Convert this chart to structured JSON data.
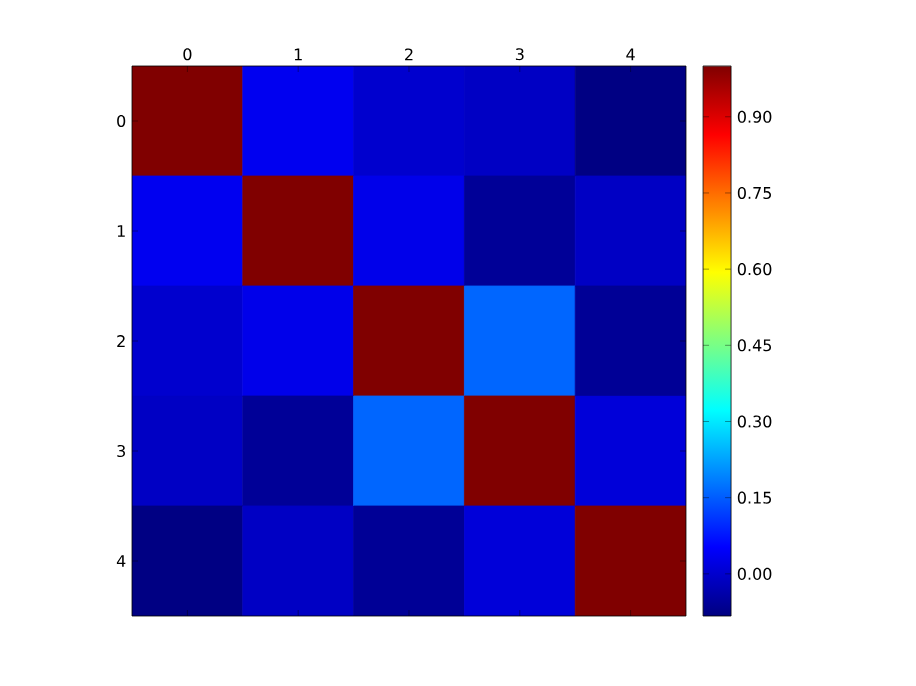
{
  "chart_data": {
    "type": "heatmap",
    "categories": [
      "0",
      "1",
      "2",
      "3",
      "4"
    ],
    "y_categories": [
      "0",
      "1",
      "2",
      "3",
      "4"
    ],
    "cells": [
      [
        1.0,
        0.036,
        0.0,
        -0.011,
        -0.08
      ],
      [
        0.036,
        1.0,
        0.03,
        -0.059,
        -0.01
      ],
      [
        0.0,
        0.03,
        1.0,
        0.161,
        -0.06
      ],
      [
        -0.011,
        -0.059,
        0.161,
        1.0,
        0.012
      ],
      [
        -0.08,
        -0.01,
        -0.06,
        0.012,
        1.0
      ]
    ],
    "clim": [
      -0.083,
      1.0
    ],
    "cticks": [
      {
        "value": 0,
        "label": "0.00"
      },
      0.15,
      {
        "value": 0.3,
        "label": "0.30"
      },
      0.45,
      {
        "value": 0.6,
        "label": "0.60"
      },
      0.75,
      {
        "value": 0.9,
        "label": "0.90"
      }
    ]
  }
}
